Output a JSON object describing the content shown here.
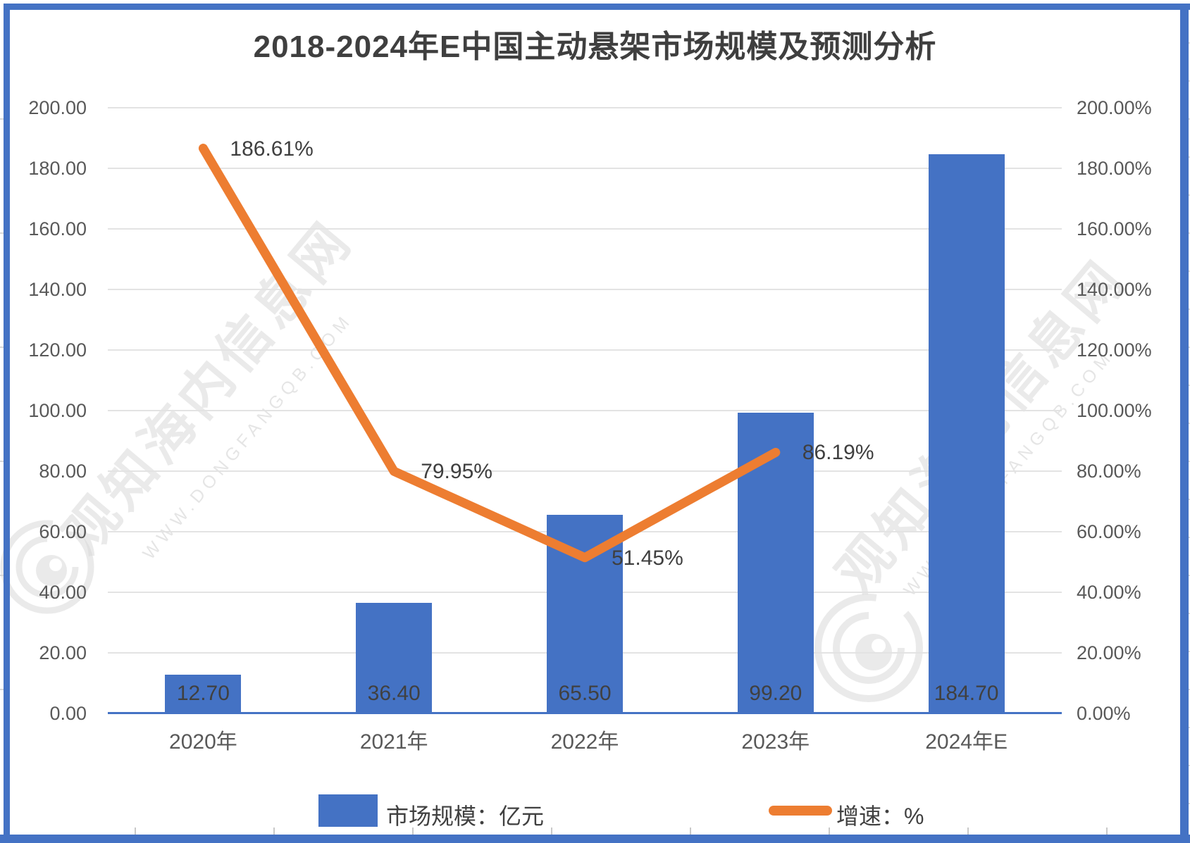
{
  "title": "2018-2024年E中国主动悬架市场规模及预测分析",
  "chart_data": {
    "type": "bar",
    "subtype": "bar+line combo",
    "categories": [
      "2020年",
      "2021年",
      "2022年",
      "2023年",
      "2024年E"
    ],
    "series": [
      {
        "name": "市场规模：亿元",
        "type": "bar",
        "color": "#4472C4",
        "values": [
          12.7,
          36.4,
          65.5,
          99.2,
          184.7
        ],
        "labels": [
          "12.70",
          "36.40",
          "65.50",
          "99.20",
          "184.70"
        ]
      },
      {
        "name": "增速：%",
        "type": "line",
        "color": "#ED7D31",
        "values": [
          186.61,
          79.95,
          51.45,
          86.19
        ],
        "labels": [
          "186.61%",
          "79.95%",
          "51.45%",
          "86.19%"
        ]
      }
    ],
    "title": "2018-2024年E中国主动悬架市场规模及预测分析",
    "xlabel": "",
    "ylabel": "",
    "left_axis": {
      "min": 0,
      "max": 200,
      "step": 20,
      "ticks": [
        "200.00",
        "180.00",
        "160.00",
        "140.00",
        "120.00",
        "100.00",
        "80.00",
        "60.00",
        "40.00",
        "20.00",
        "0.00"
      ]
    },
    "right_axis": {
      "min": 0,
      "max": 200,
      "step": 20,
      "ticks": [
        "200.00%",
        "180.00%",
        "160.00%",
        "140.00%",
        "120.00%",
        "100.00%",
        "80.00%",
        "60.00%",
        "40.00%",
        "20.00%",
        "0.00%"
      ]
    },
    "grid": true,
    "legend_position": "bottom"
  },
  "legend": {
    "bar_label": "市场规模：亿元",
    "line_label": "增速：%"
  },
  "watermark": {
    "cn": "观知海内信息网",
    "url": "WWW.DONGFANGQB.COM"
  }
}
